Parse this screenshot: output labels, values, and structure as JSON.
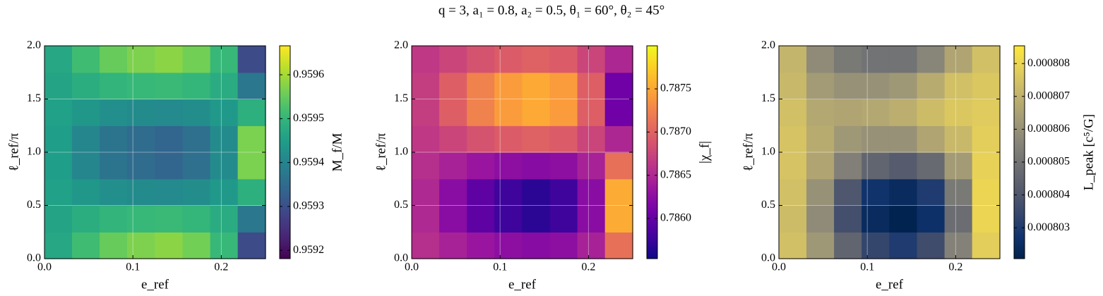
{
  "title": "q = 3, a₁ = 0.8, a₂ = 0.5, θ₁ = 60°, θ₂ = 45°",
  "chart_data": [
    {
      "type": "heatmap",
      "xlabel": "e_ref",
      "ylabel": "ℓ_ref/π",
      "colorbar_label": "M_f/M",
      "colormap": "viridis",
      "xlim": [
        0,
        0.25
      ],
      "ylim": [
        0,
        2
      ],
      "xticks": [
        {
          "value": 0,
          "label": "0.0"
        },
        0.1,
        0.2
      ],
      "yticks": [
        {
          "value": 0,
          "label": "0.0"
        },
        0.5,
        {
          "value": 1,
          "label": "1.0"
        },
        1.5,
        {
          "value": 2,
          "label": "2.0"
        }
      ],
      "clim": [
        0.959181,
        0.959666
      ],
      "cticks": [
        0.9592,
        0.9593,
        0.9594,
        0.9595,
        0.9596
      ],
      "grid": true,
      "z": [
        [
          0.959469,
          0.959515,
          0.959552,
          0.95957,
          0.95958,
          0.959561,
          0.959506,
          0.959292
        ],
        [
          0.959464,
          0.959483,
          0.959498,
          0.959506,
          0.959509,
          0.959502,
          0.959479,
          0.959373
        ],
        [
          0.959456,
          0.959437,
          0.959422,
          0.959414,
          0.959411,
          0.959418,
          0.959441,
          0.959487
        ],
        [
          0.959451,
          0.959405,
          0.959368,
          0.95935,
          0.95934,
          0.959359,
          0.959414,
          0.959568
        ],
        [
          0.959451,
          0.959405,
          0.959368,
          0.95935,
          0.95934,
          0.959359,
          0.959414,
          0.959568
        ],
        [
          0.959456,
          0.959437,
          0.959422,
          0.959414,
          0.959411,
          0.959418,
          0.959441,
          0.959487
        ],
        [
          0.959464,
          0.959483,
          0.959498,
          0.959506,
          0.959509,
          0.959502,
          0.959479,
          0.959373
        ],
        [
          0.959469,
          0.959515,
          0.959552,
          0.95957,
          0.95958,
          0.959561,
          0.959506,
          0.959292
        ]
      ]
    },
    {
      "type": "heatmap",
      "xlabel": "e_ref",
      "ylabel": "ℓ_ref/π",
      "colorbar_label": "|χ_f|",
      "colormap": "plasma",
      "xlim": [
        0,
        0.25
      ],
      "ylim": [
        0,
        2
      ],
      "xticks": [
        {
          "value": 0,
          "label": "0.0"
        },
        0.1,
        0.2
      ],
      "yticks": [
        {
          "value": 0,
          "label": "0.0"
        },
        0.5,
        {
          "value": 1,
          "label": "1.0"
        },
        1.5,
        {
          "value": 2,
          "label": "2.0"
        }
      ],
      "clim": [
        0.785535,
        0.787998
      ],
      "cticks": [
        {
          "value": 0.786,
          "label": "0.7860"
        },
        0.7865,
        {
          "value": 0.787,
          "label": "0.7870"
        },
        0.7875
      ],
      "grid": true,
      "z": [
        [
          0.786562,
          0.786448,
          0.786334,
          0.786258,
          0.78622,
          0.786258,
          0.786448,
          0.787104
        ],
        [
          0.786508,
          0.786232,
          0.785956,
          0.785772,
          0.78568,
          0.785772,
          0.786232,
          0.787536
        ],
        [
          0.786508,
          0.786232,
          0.785956,
          0.785772,
          0.78568,
          0.785772,
          0.786232,
          0.787536
        ],
        [
          0.786562,
          0.786448,
          0.786334,
          0.786258,
          0.78622,
          0.786258,
          0.786448,
          0.787104
        ],
        [
          0.786638,
          0.786752,
          0.786866,
          0.786942,
          0.78698,
          0.786942,
          0.786752,
          0.786496
        ],
        [
          0.786692,
          0.786968,
          0.787244,
          0.787428,
          0.78752,
          0.787428,
          0.786968,
          0.786064
        ],
        [
          0.786692,
          0.786968,
          0.787244,
          0.787428,
          0.78752,
          0.787428,
          0.786968,
          0.786064
        ],
        [
          0.786638,
          0.786752,
          0.786866,
          0.786942,
          0.78698,
          0.786942,
          0.786752,
          0.786496
        ]
      ]
    },
    {
      "type": "heatmap",
      "xlabel": "e_ref",
      "ylabel": "ℓ_ref/π",
      "colorbar_label": "L_peak [c⁵/G]",
      "colormap": "cividis",
      "xlim": [
        0,
        0.25
      ],
      "ylim": [
        0,
        2
      ],
      "xticks": [
        {
          "value": 0,
          "label": "0.0"
        },
        0.1,
        0.2
      ],
      "yticks": [
        {
          "value": 0,
          "label": "0.0"
        },
        0.5,
        {
          "value": 1,
          "label": "1.0"
        },
        1.5,
        {
          "value": 2,
          "label": "2.0"
        }
      ],
      "clim": [
        0.00080206,
        0.00080854
      ],
      "cticks": [
        0.000803,
        0.000804,
        0.000805,
        0.000806,
        0.000807,
        0.000808
      ],
      "grid": true,
      "z": [
        [
          0.0008074,
          0.0008062,
          0.0008045,
          0.0008034,
          0.000803,
          0.0008036,
          0.0008055,
          0.0008078
        ],
        [
          0.0008073,
          0.0008058,
          0.0008037,
          0.0008024,
          0.0008021,
          0.0008026,
          0.0008048,
          0.000808
        ],
        [
          0.0008074,
          0.000806,
          0.000804,
          0.0008027,
          0.0008024,
          0.000803,
          0.0008052,
          0.000808
        ],
        [
          0.0008075,
          0.0008066,
          0.0008054,
          0.0008045,
          0.0008042,
          0.0008047,
          0.0008063,
          0.0008079
        ],
        [
          0.0008075,
          0.0008068,
          0.0008062,
          0.000806,
          0.000806,
          0.0008066,
          0.0008072,
          0.0008078
        ],
        [
          0.0008074,
          0.0008067,
          0.0008066,
          0.0008067,
          0.0008069,
          0.0008073,
          0.0008076,
          0.0008077
        ],
        [
          0.0008072,
          0.0008063,
          0.000806,
          0.000806,
          0.0008062,
          0.0008068,
          0.0008074,
          0.0008076
        ],
        [
          0.0008071,
          0.0008058,
          0.0008052,
          0.000805,
          0.000805,
          0.0008056,
          0.0008066,
          0.0008074
        ]
      ]
    }
  ]
}
